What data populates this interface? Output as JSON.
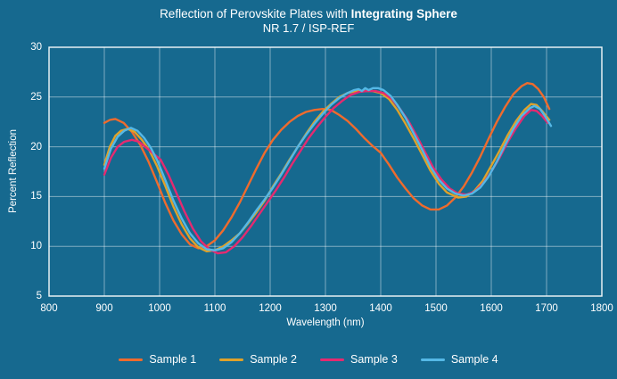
{
  "colors": {
    "background": "#16698F",
    "grid": "rgba(255,255,255,0.45)",
    "plot_border": "rgba(255,255,255,0.85)",
    "text": "#FFFFFF"
  },
  "header": {
    "title_regular": "Reflection of Perovskite Plates with ",
    "title_bold": "Integrating Sphere",
    "subtitle": "NR 1.7 / ISP-REF"
  },
  "chart_data": {
    "type": "line",
    "title": "Reflection of Perovskite Plates with Integrating Sphere",
    "subtitle": "NR 1.7 / ISP-REF",
    "xlabel": "Wavelength (nm)",
    "ylabel": "Percent Reflection",
    "xlim": [
      800,
      1800
    ],
    "ylim": [
      5,
      30
    ],
    "x_ticks": [
      800,
      900,
      1000,
      1100,
      1200,
      1300,
      1400,
      1500,
      1600,
      1700,
      1800
    ],
    "y_ticks": [
      5,
      10,
      15,
      20,
      25,
      30
    ],
    "grid": true,
    "legend_position": "bottom",
    "series": [
      {
        "name": "Sample 1",
        "color": "#EF6B2D",
        "points": [
          [
            900,
            22.4
          ],
          [
            910,
            22.7
          ],
          [
            920,
            22.8
          ],
          [
            935,
            22.4
          ],
          [
            950,
            21.5
          ],
          [
            965,
            20.2
          ],
          [
            980,
            18.5
          ],
          [
            995,
            16.5
          ],
          [
            1010,
            14.4
          ],
          [
            1025,
            12.6
          ],
          [
            1040,
            11.2
          ],
          [
            1055,
            10.2
          ],
          [
            1070,
            9.8
          ],
          [
            1085,
            10.0
          ],
          [
            1100,
            10.6
          ],
          [
            1115,
            11.6
          ],
          [
            1130,
            12.9
          ],
          [
            1145,
            14.4
          ],
          [
            1160,
            16.1
          ],
          [
            1175,
            17.8
          ],
          [
            1190,
            19.4
          ],
          [
            1205,
            20.7
          ],
          [
            1220,
            21.7
          ],
          [
            1235,
            22.5
          ],
          [
            1250,
            23.1
          ],
          [
            1265,
            23.5
          ],
          [
            1280,
            23.7
          ],
          [
            1295,
            23.8
          ],
          [
            1310,
            23.7
          ],
          [
            1325,
            23.2
          ],
          [
            1340,
            22.6
          ],
          [
            1355,
            21.8
          ],
          [
            1370,
            20.9
          ],
          [
            1385,
            20.1
          ],
          [
            1400,
            19.4
          ],
          [
            1415,
            18.2
          ],
          [
            1430,
            16.9
          ],
          [
            1445,
            15.8
          ],
          [
            1460,
            14.8
          ],
          [
            1475,
            14.1
          ],
          [
            1490,
            13.7
          ],
          [
            1505,
            13.7
          ],
          [
            1520,
            14.1
          ],
          [
            1535,
            14.9
          ],
          [
            1550,
            16.0
          ],
          [
            1565,
            17.4
          ],
          [
            1580,
            19.0
          ],
          [
            1595,
            20.8
          ],
          [
            1610,
            22.5
          ],
          [
            1625,
            24.0
          ],
          [
            1640,
            25.3
          ],
          [
            1655,
            26.1
          ],
          [
            1665,
            26.4
          ],
          [
            1675,
            26.3
          ],
          [
            1685,
            25.8
          ],
          [
            1695,
            25.0
          ],
          [
            1705,
            23.8
          ]
        ]
      },
      {
        "name": "Sample 2",
        "color": "#DFA22A",
        "points": [
          [
            900,
            18.2
          ],
          [
            910,
            20.0
          ],
          [
            920,
            21.1
          ],
          [
            930,
            21.6
          ],
          [
            942,
            21.8
          ],
          [
            955,
            21.5
          ],
          [
            968,
            20.7
          ],
          [
            982,
            19.6
          ],
          [
            995,
            18.1
          ],
          [
            1010,
            16.1
          ],
          [
            1025,
            14.0
          ],
          [
            1040,
            12.2
          ],
          [
            1055,
            10.8
          ],
          [
            1070,
            9.9
          ],
          [
            1085,
            9.5
          ],
          [
            1100,
            9.6
          ],
          [
            1115,
            10.0
          ],
          [
            1130,
            10.6
          ],
          [
            1145,
            11.3
          ],
          [
            1160,
            12.3
          ],
          [
            1175,
            13.4
          ],
          [
            1190,
            14.6
          ],
          [
            1205,
            16.0
          ],
          [
            1220,
            17.3
          ],
          [
            1235,
            18.7
          ],
          [
            1250,
            20.0
          ],
          [
            1265,
            21.3
          ],
          [
            1280,
            22.5
          ],
          [
            1295,
            23.5
          ],
          [
            1310,
            24.3
          ],
          [
            1325,
            25.0
          ],
          [
            1340,
            25.4
          ],
          [
            1355,
            25.6
          ],
          [
            1370,
            25.6
          ],
          [
            1385,
            25.6
          ],
          [
            1400,
            25.4
          ],
          [
            1415,
            24.8
          ],
          [
            1430,
            23.7
          ],
          [
            1445,
            22.3
          ],
          [
            1460,
            20.8
          ],
          [
            1475,
            19.2
          ],
          [
            1490,
            17.6
          ],
          [
            1505,
            16.3
          ],
          [
            1520,
            15.4
          ],
          [
            1540,
            14.9
          ],
          [
            1555,
            15.0
          ],
          [
            1570,
            15.6
          ],
          [
            1585,
            16.6
          ],
          [
            1600,
            18.1
          ],
          [
            1615,
            19.6
          ],
          [
            1630,
            21.2
          ],
          [
            1645,
            22.6
          ],
          [
            1660,
            23.7
          ],
          [
            1672,
            24.3
          ],
          [
            1682,
            24.2
          ],
          [
            1692,
            23.6
          ],
          [
            1705,
            22.7
          ]
        ]
      },
      {
        "name": "Sample 3",
        "color": "#E52A70",
        "points": [
          [
            900,
            17.2
          ],
          [
            912,
            18.9
          ],
          [
            924,
            20.0
          ],
          [
            936,
            20.5
          ],
          [
            950,
            20.7
          ],
          [
            963,
            20.5
          ],
          [
            976,
            19.9
          ],
          [
            989,
            19.3
          ],
          [
            1002,
            18.7
          ],
          [
            1016,
            17.2
          ],
          [
            1030,
            15.4
          ],
          [
            1045,
            13.5
          ],
          [
            1060,
            11.8
          ],
          [
            1075,
            10.5
          ],
          [
            1090,
            9.7
          ],
          [
            1105,
            9.3
          ],
          [
            1120,
            9.4
          ],
          [
            1135,
            10.0
          ],
          [
            1150,
            10.9
          ],
          [
            1165,
            12.0
          ],
          [
            1180,
            13.2
          ],
          [
            1195,
            14.4
          ],
          [
            1210,
            15.6
          ],
          [
            1225,
            16.9
          ],
          [
            1240,
            18.3
          ],
          [
            1255,
            19.6
          ],
          [
            1270,
            20.9
          ],
          [
            1285,
            22.0
          ],
          [
            1300,
            23.0
          ],
          [
            1315,
            23.9
          ],
          [
            1330,
            24.6
          ],
          [
            1345,
            25.2
          ],
          [
            1360,
            25.5
          ],
          [
            1375,
            25.6
          ],
          [
            1390,
            25.6
          ],
          [
            1405,
            25.4
          ],
          [
            1420,
            24.8
          ],
          [
            1435,
            23.8
          ],
          [
            1450,
            22.6
          ],
          [
            1465,
            21.1
          ],
          [
            1480,
            19.5
          ],
          [
            1495,
            17.9
          ],
          [
            1510,
            16.7
          ],
          [
            1525,
            15.8
          ],
          [
            1540,
            15.3
          ],
          [
            1555,
            15.2
          ],
          [
            1570,
            15.5
          ],
          [
            1585,
            16.3
          ],
          [
            1600,
            17.5
          ],
          [
            1615,
            18.9
          ],
          [
            1630,
            20.5
          ],
          [
            1645,
            21.9
          ],
          [
            1660,
            23.1
          ],
          [
            1672,
            23.7
          ],
          [
            1682,
            23.6
          ],
          [
            1692,
            23.1
          ],
          [
            1702,
            22.4
          ]
        ]
      },
      {
        "name": "Sample 4",
        "color": "#55B8E6",
        "points": [
          [
            900,
            17.8
          ],
          [
            912,
            19.8
          ],
          [
            924,
            21.0
          ],
          [
            936,
            21.6
          ],
          [
            948,
            21.9
          ],
          [
            960,
            21.6
          ],
          [
            972,
            20.9
          ],
          [
            984,
            19.9
          ],
          [
            996,
            18.6
          ],
          [
            1010,
            16.7
          ],
          [
            1025,
            14.6
          ],
          [
            1040,
            12.8
          ],
          [
            1055,
            11.3
          ],
          [
            1070,
            10.3
          ],
          [
            1085,
            9.7
          ],
          [
            1100,
            9.6
          ],
          [
            1115,
            9.8
          ],
          [
            1130,
            10.4
          ],
          [
            1145,
            11.3
          ],
          [
            1160,
            12.4
          ],
          [
            1175,
            13.6
          ],
          [
            1190,
            14.7
          ],
          [
            1205,
            15.9
          ],
          [
            1220,
            17.2
          ],
          [
            1235,
            18.6
          ],
          [
            1250,
            20.0
          ],
          [
            1265,
            21.2
          ],
          [
            1280,
            22.3
          ],
          [
            1295,
            23.3
          ],
          [
            1310,
            24.2
          ],
          [
            1325,
            24.9
          ],
          [
            1340,
            25.4
          ],
          [
            1352,
            25.7
          ],
          [
            1360,
            25.8
          ],
          [
            1366,
            25.6
          ],
          [
            1372,
            25.9
          ],
          [
            1378,
            25.7
          ],
          [
            1386,
            25.9
          ],
          [
            1395,
            25.9
          ],
          [
            1405,
            25.7
          ],
          [
            1418,
            25.1
          ],
          [
            1430,
            24.2
          ],
          [
            1445,
            22.9
          ],
          [
            1460,
            21.3
          ],
          [
            1475,
            19.7
          ],
          [
            1490,
            18.0
          ],
          [
            1505,
            16.7
          ],
          [
            1520,
            15.8
          ],
          [
            1535,
            15.3
          ],
          [
            1550,
            15.1
          ],
          [
            1565,
            15.3
          ],
          [
            1580,
            15.9
          ],
          [
            1595,
            17.0
          ],
          [
            1610,
            18.5
          ],
          [
            1625,
            20.2
          ],
          [
            1640,
            21.8
          ],
          [
            1655,
            23.1
          ],
          [
            1670,
            23.9
          ],
          [
            1678,
            24.1
          ],
          [
            1688,
            23.8
          ],
          [
            1698,
            23.0
          ],
          [
            1708,
            22.1
          ]
        ]
      }
    ]
  }
}
